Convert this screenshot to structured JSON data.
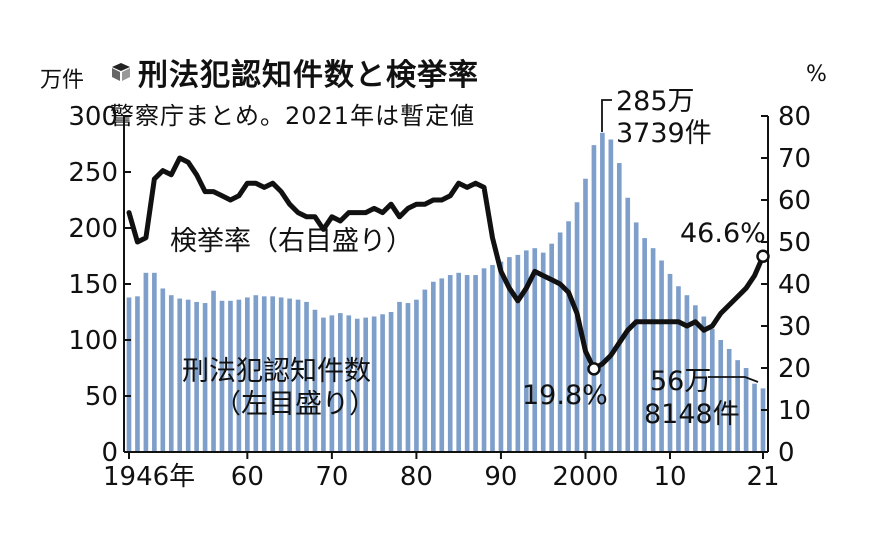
{
  "title": "刑法犯認知件数と検挙率",
  "subtitle": "警察庁まとめ。2021年は暫定値",
  "left_unit": "万件",
  "right_unit": "%",
  "colors": {
    "bar": "#7f9fcb",
    "line": "#111111"
  },
  "chart_data": {
    "type": "bar",
    "title": "刑法犯認知件数と検挙率",
    "xlim": [
      1946,
      2021
    ],
    "ylim_left": [
      0,
      300
    ],
    "ylim_right": [
      0,
      80
    ],
    "x_tick_values": [
      1946,
      1960,
      1970,
      1980,
      1990,
      2000,
      2010,
      2021
    ],
    "x_tick_labels": [
      "1946年",
      "60",
      "70",
      "80",
      "90",
      "2000",
      "10",
      "21"
    ],
    "y_left_ticks": [
      0,
      50,
      100,
      150,
      200,
      250,
      300
    ],
    "y_right_ticks": [
      0,
      10,
      20,
      30,
      40,
      50,
      60,
      70,
      80
    ],
    "series": [
      {
        "name": "刑法犯認知件数",
        "axis": "left",
        "unit": "万件",
        "type": "bar",
        "x": [
          1946,
          1947,
          1948,
          1949,
          1950,
          1951,
          1952,
          1953,
          1954,
          1955,
          1956,
          1957,
          1958,
          1959,
          1960,
          1961,
          1962,
          1963,
          1964,
          1965,
          1966,
          1967,
          1968,
          1969,
          1970,
          1971,
          1972,
          1973,
          1974,
          1975,
          1976,
          1977,
          1978,
          1979,
          1980,
          1981,
          1982,
          1983,
          1984,
          1985,
          1986,
          1987,
          1988,
          1989,
          1990,
          1991,
          1992,
          1993,
          1994,
          1995,
          1996,
          1997,
          1998,
          1999,
          2000,
          2001,
          2002,
          2003,
          2004,
          2005,
          2006,
          2007,
          2008,
          2009,
          2010,
          2011,
          2012,
          2013,
          2014,
          2015,
          2016,
          2017,
          2018,
          2019,
          2020,
          2021
        ],
        "values": [
          138,
          139,
          160,
          160,
          146,
          140,
          137,
          136,
          134,
          133,
          144,
          135,
          135,
          136,
          138,
          140,
          139,
          139,
          138,
          137,
          136,
          134,
          127,
          120,
          122,
          124,
          122,
          119,
          120,
          121,
          123,
          125,
          134,
          133,
          136,
          145,
          152,
          155,
          158,
          160,
          158,
          158,
          164,
          167,
          170,
          174,
          176,
          180,
          182,
          178,
          186,
          196,
          206,
          223,
          244,
          274,
          285,
          279,
          258,
          227,
          205,
          191,
          182,
          171,
          159,
          148,
          140,
          131,
          121,
          110,
          100,
          92,
          82,
          75,
          61,
          56.8
        ]
      },
      {
        "name": "検挙率",
        "axis": "right",
        "unit": "%",
        "type": "line",
        "x": [
          1946,
          1947,
          1948,
          1949,
          1950,
          1951,
          1952,
          1953,
          1954,
          1955,
          1956,
          1957,
          1958,
          1959,
          1960,
          1961,
          1962,
          1963,
          1964,
          1965,
          1966,
          1967,
          1968,
          1969,
          1970,
          1971,
          1972,
          1973,
          1974,
          1975,
          1976,
          1977,
          1978,
          1979,
          1980,
          1981,
          1982,
          1983,
          1984,
          1985,
          1986,
          1987,
          1988,
          1989,
          1990,
          1991,
          1992,
          1993,
          1994,
          1995,
          1996,
          1997,
          1998,
          1999,
          2000,
          2001,
          2002,
          2003,
          2004,
          2005,
          2006,
          2007,
          2008,
          2009,
          2010,
          2011,
          2012,
          2013,
          2014,
          2015,
          2016,
          2017,
          2018,
          2019,
          2020,
          2021
        ],
        "values": [
          57,
          50,
          51,
          65,
          67,
          66,
          70,
          69,
          66,
          62,
          62,
          61,
          60,
          61,
          64,
          64,
          63,
          64,
          62,
          59,
          57,
          56,
          56,
          53,
          56,
          55,
          57,
          57,
          57,
          58,
          57,
          59,
          56,
          58,
          59,
          59,
          60,
          60,
          61,
          64,
          63,
          64,
          63,
          51,
          43,
          39,
          36,
          39,
          43,
          42,
          41,
          40,
          38,
          33,
          24,
          19.8,
          21,
          23,
          26,
          29,
          31,
          31,
          31,
          31,
          31,
          31,
          30,
          31,
          29,
          30,
          33,
          35,
          37,
          39,
          42,
          46.6
        ]
      }
    ]
  },
  "annotations": {
    "line_label": "検挙率（右目盛り）",
    "bar_label": "刑法犯認知件数",
    "bar_label_sub": "（左目盛り）",
    "peak_line1": "285万",
    "peak_line2": "3739件",
    "min_rate": "19.8%",
    "last_rate": "46.6%",
    "last_count_line1": "56万",
    "last_count_line2": "8148件"
  }
}
